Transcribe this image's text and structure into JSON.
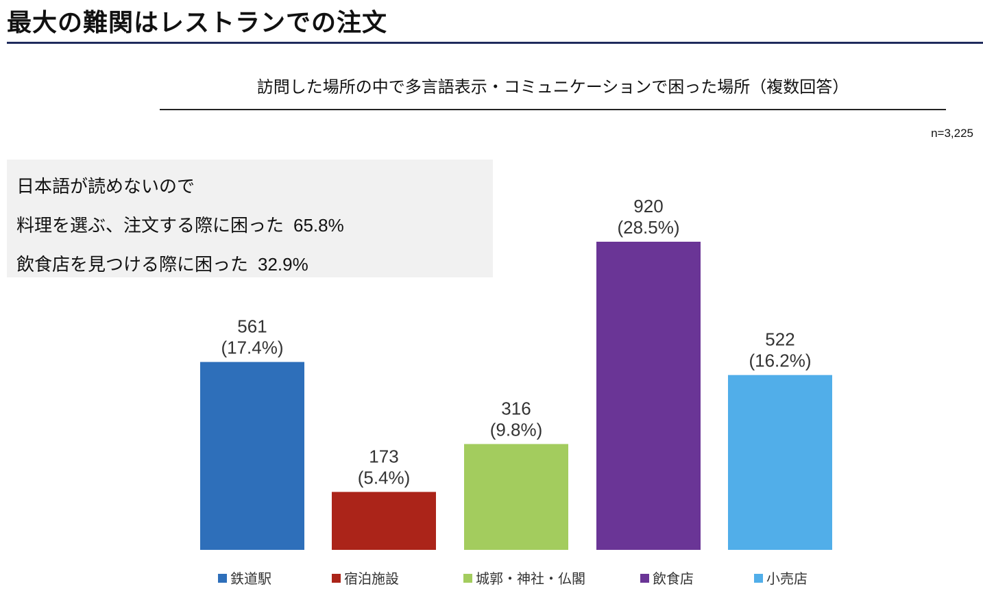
{
  "header": {
    "title": "最大の難関はレストランでの注文"
  },
  "callout": {
    "line1": "日本語が読めないので",
    "line2_text": "料理を選ぶ、注文する際に困った",
    "line2_value": "65.8%",
    "line3_text": "飲食店を見つける際に困った",
    "line3_value": "32.9%"
  },
  "chart_data": {
    "type": "bar",
    "title": "訪問した場所の中で多言語表示・コミュニケーションで困った場所（複数回答）",
    "sample_size": "n=3,225",
    "categories": [
      "鉄道駅",
      "宿泊施設",
      "城郭・神社・仏閣",
      "飲食店",
      "小売店"
    ],
    "values": [
      561,
      173,
      316,
      920,
      522
    ],
    "percent_labels": [
      "(17.4%)",
      "(5.4%)",
      "(9.8%)",
      "(28.5%)",
      "(16.2%)"
    ],
    "colors": [
      "#2e6fba",
      "#ab2419",
      "#a3cc5e",
      "#6a3596",
      "#51aee9"
    ],
    "legend_position": "bottom",
    "grid": false
  }
}
